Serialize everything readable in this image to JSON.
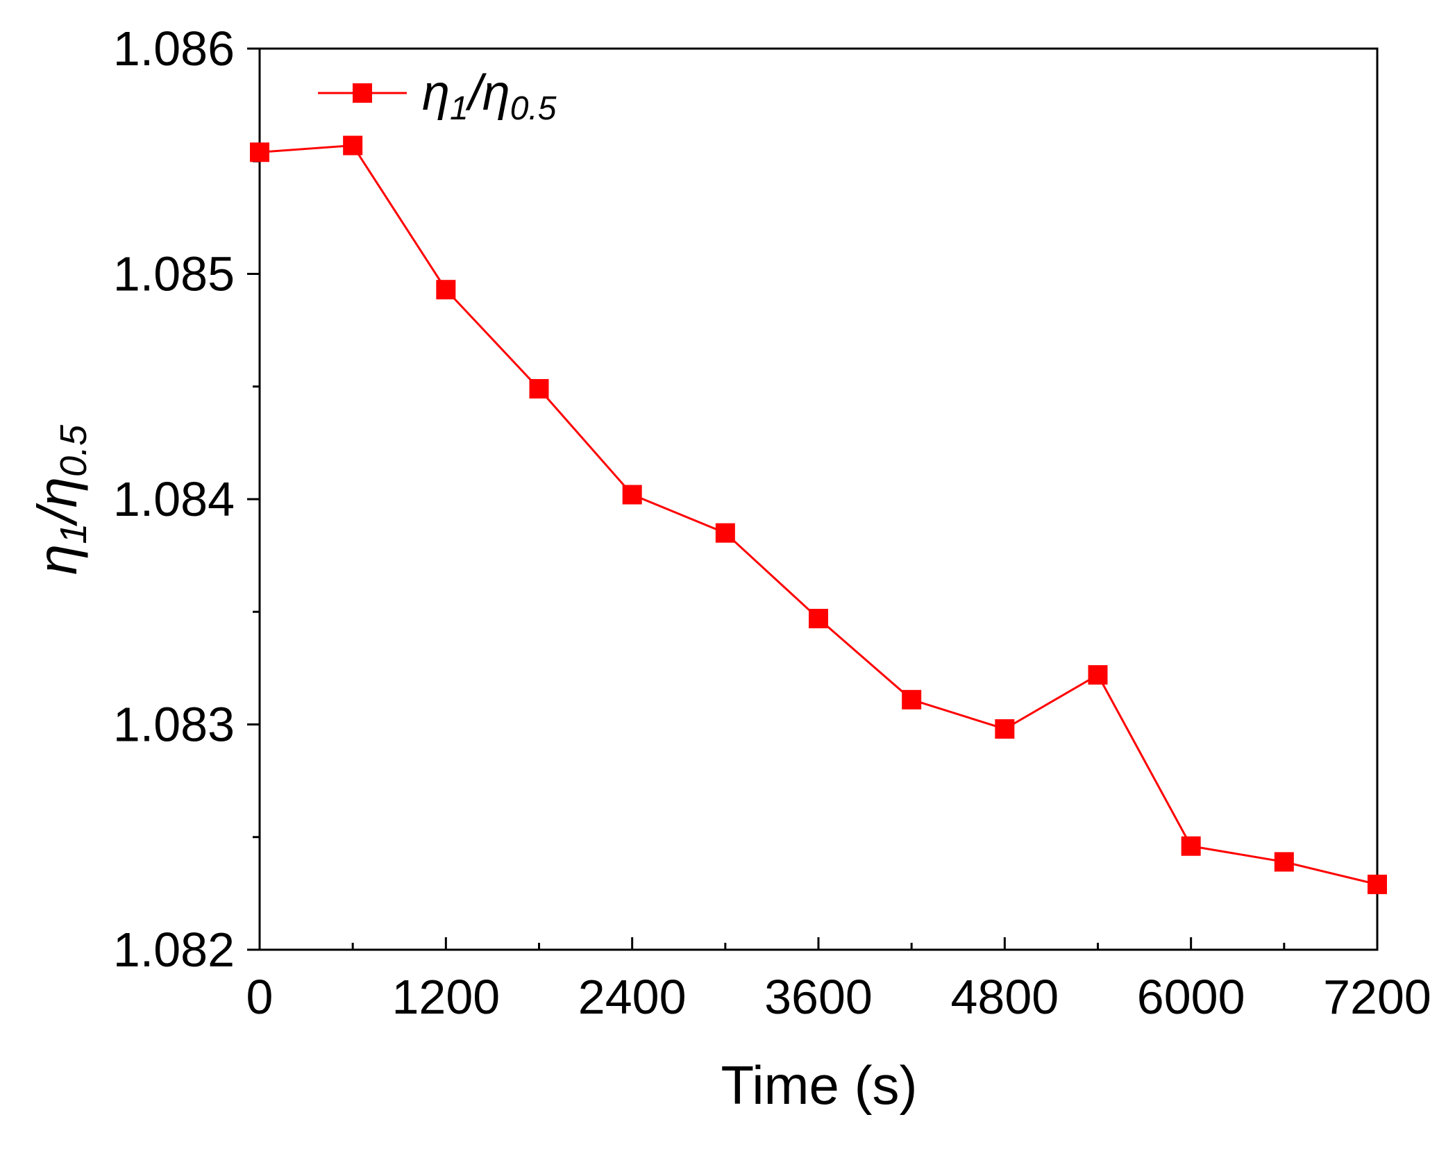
{
  "chart_data": {
    "type": "line",
    "title": "",
    "xlabel": "Time (s)",
    "ylabel": {
      "base": "η",
      "sub1": "1",
      "slash": "/",
      "base2": "η",
      "sub2": "0.5"
    },
    "xlim": [
      0,
      7200
    ],
    "ylim": [
      1.082,
      1.086
    ],
    "xticks": [
      0,
      1200,
      2400,
      3600,
      4800,
      6000,
      7200
    ],
    "xtick_labels": [
      "0",
      "1200",
      "2400",
      "3600",
      "4800",
      "6000",
      "7200"
    ],
    "xminor_ticks": [
      600,
      1800,
      3000,
      4200,
      5400,
      6600
    ],
    "yticks": [
      1.082,
      1.083,
      1.084,
      1.085,
      1.086
    ],
    "ytick_labels": [
      "1.082",
      "1.083",
      "1.084",
      "1.085",
      "1.086"
    ],
    "yminor_ticks": [
      1.0825,
      1.0835,
      1.0845,
      1.0855
    ],
    "grid": false,
    "legend_position": "top-left",
    "series": [
      {
        "name": "η1/η0.5",
        "legend": {
          "base": "η",
          "sub1": "1",
          "slash": "/",
          "base2": "η",
          "sub2": "0.5"
        },
        "color": "#ff0000",
        "marker": "square",
        "x": [
          0,
          600,
          1200,
          1800,
          2400,
          3000,
          3600,
          4200,
          4800,
          5400,
          6000,
          6600,
          7200
        ],
        "y": [
          1.08554,
          1.08557,
          1.08493,
          1.08449,
          1.08402,
          1.08385,
          1.08347,
          1.08311,
          1.08298,
          1.08322,
          1.08246,
          1.08239,
          1.08229
        ]
      }
    ]
  }
}
